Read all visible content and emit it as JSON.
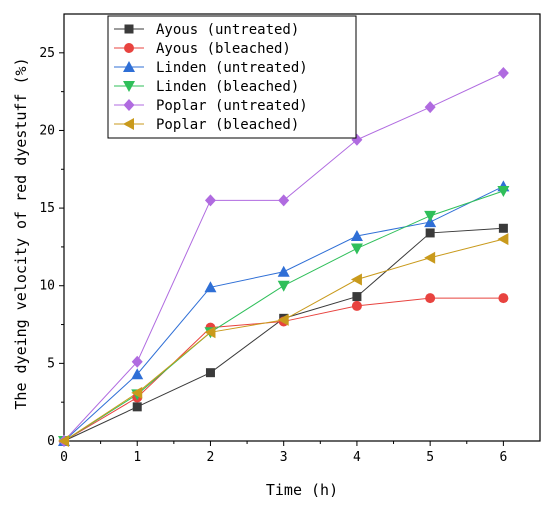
{
  "chart_data": {
    "type": "line",
    "xlabel": "Time (h)",
    "ylabel": "The dyeing velocity of red dyestuff (%)",
    "x": [
      0,
      1,
      2,
      3,
      4,
      5,
      6
    ],
    "xlim": [
      0,
      6.5
    ],
    "ylim": [
      0,
      27.5
    ],
    "xticks": [
      0,
      1,
      2,
      3,
      4,
      5,
      6
    ],
    "yticks": [
      0,
      5,
      10,
      15,
      20,
      25
    ],
    "grid": false,
    "legend_position": "top-left",
    "series": [
      {
        "name": "Ayous (untreated)",
        "marker": "square",
        "color": "#3a3a3a",
        "values": [
          0,
          2.2,
          4.4,
          7.9,
          9.3,
          13.4,
          13.7
        ]
      },
      {
        "name": "Ayous (bleached)",
        "marker": "circle",
        "color": "#e8433f",
        "values": [
          0,
          2.8,
          7.3,
          7.7,
          8.7,
          9.2,
          9.2
        ]
      },
      {
        "name": "Linden (untreated)",
        "marker": "triangle-up",
        "color": "#2f6fd6",
        "values": [
          0,
          4.3,
          9.9,
          10.9,
          13.2,
          14.1,
          16.4
        ]
      },
      {
        "name": "Linden (bleached)",
        "marker": "triangle-down",
        "color": "#2fbf5a",
        "values": [
          0,
          3.0,
          7.0,
          10.0,
          12.4,
          14.5,
          16.1
        ]
      },
      {
        "name": "Poplar (untreated)",
        "marker": "diamond",
        "color": "#b06be0",
        "values": [
          0,
          5.1,
          15.5,
          15.5,
          19.4,
          21.5,
          23.7
        ]
      },
      {
        "name": "Poplar (bleached)",
        "marker": "triangle-left",
        "color": "#c99a1c",
        "values": [
          0,
          3.1,
          7.0,
          7.8,
          10.4,
          11.8,
          13.0
        ]
      }
    ]
  }
}
